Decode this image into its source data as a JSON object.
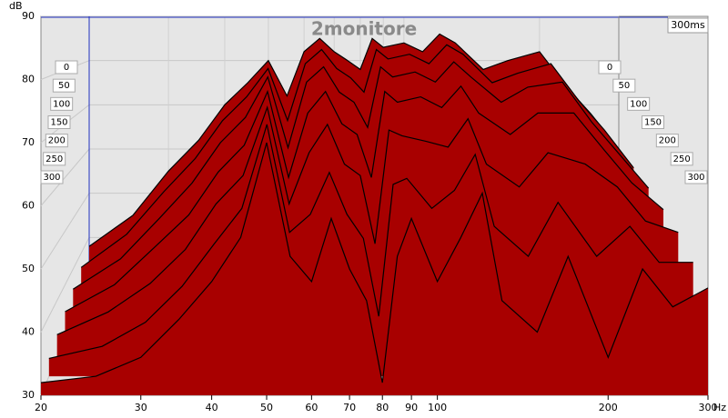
{
  "chart_data": {
    "type": "waterfall",
    "title": "2monitore",
    "y_label": "dB",
    "x_label": "Hz",
    "time_end_label": "300ms",
    "x": [
      20,
      25,
      30,
      35,
      40,
      45,
      50,
      55,
      60,
      65,
      70,
      75,
      80,
      85,
      90,
      100,
      110,
      120,
      130,
      150,
      170,
      200,
      230,
      260,
      300
    ],
    "xlim": [
      20,
      300
    ],
    "xticks": [
      20,
      30,
      40,
      50,
      60,
      70,
      80,
      90,
      100,
      200,
      300
    ],
    "xscale": "log",
    "ylim": [
      30,
      90
    ],
    "yticks": [
      30,
      40,
      50,
      60,
      70,
      80,
      90
    ],
    "fill_color": "#a80000",
    "line_color": "#000000",
    "series": [
      {
        "name": "0",
        "values": [
          38,
          45,
          55,
          62,
          70,
          75,
          80,
          72,
          82,
          85,
          82,
          80,
          78,
          85,
          83,
          84,
          82,
          86,
          84,
          78,
          80,
          82,
          74,
          68,
          60
        ]
      },
      {
        "name": "50",
        "values": [
          37,
          44,
          53,
          60,
          68,
          73,
          79,
          68,
          80,
          83,
          79,
          77,
          74,
          83,
          81,
          82,
          80,
          84,
          82,
          76,
          78,
          80,
          72,
          66,
          58
        ]
      },
      {
        "name": "100",
        "values": [
          36,
          42,
          50,
          57,
          65,
          70,
          78,
          64,
          77,
          80,
          75,
          73,
          68,
          80,
          78,
          79,
          77,
          81,
          78,
          73,
          76,
          77,
          69,
          63,
          56
        ]
      },
      {
        "name": "150",
        "values": [
          35,
          40,
          47,
          53,
          61,
          66,
          76,
          60,
          72,
          76,
          70,
          68,
          60,
          76,
          74,
          75,
          73,
          77,
          72,
          68,
          72,
          72,
          65,
          59,
          54
        ]
      },
      {
        "name": "200",
        "values": [
          34,
          38,
          43,
          49,
          57,
          62,
          74,
          57,
          66,
          71,
          64,
          62,
          50,
          70,
          69,
          68,
          67,
          72,
          64,
          60,
          66,
          64,
          60,
          54,
          52
        ]
      },
      {
        "name": "250",
        "values": [
          33,
          35,
          39,
          45,
          52,
          58,
          72,
          54,
          57,
          64,
          57,
          53,
          40,
          62,
          63,
          58,
          61,
          67,
          55,
          50,
          59,
          50,
          55,
          49,
          49
        ]
      },
      {
        "name": "300",
        "values": [
          32,
          33,
          36,
          42,
          48,
          55,
          70,
          52,
          48,
          58,
          50,
          45,
          32,
          52,
          58,
          48,
          55,
          62,
          45,
          40,
          52,
          36,
          50,
          44,
          47
        ]
      }
    ]
  }
}
